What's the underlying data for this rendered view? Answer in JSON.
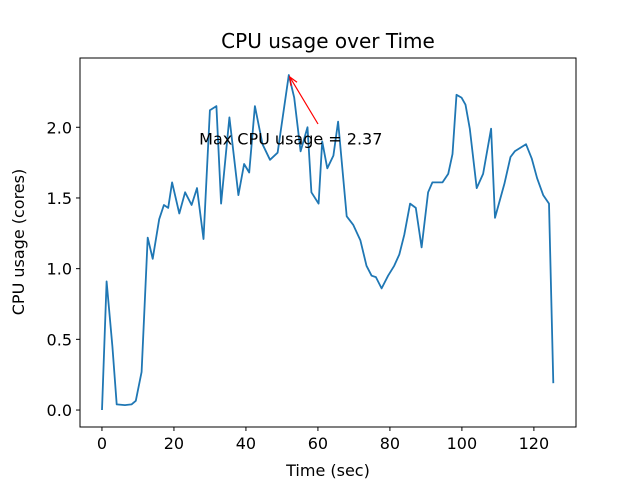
{
  "chart_data": {
    "type": "line",
    "title": "CPU usage over Time",
    "xlabel": "Time (sec)",
    "ylabel": "CPU usage (cores)",
    "xlim": [
      -6.1,
      131.7
    ],
    "ylim": [
      -0.12,
      2.49
    ],
    "xticks": [
      0,
      20,
      40,
      60,
      80,
      100,
      120
    ],
    "xtick_labels": [
      "0",
      "20",
      "40",
      "60",
      "80",
      "100",
      "120"
    ],
    "yticks": [
      0.0,
      0.5,
      1.0,
      1.5,
      2.0
    ],
    "ytick_labels": [
      "0.0",
      "0.5",
      "1.0",
      "1.5",
      "2.0"
    ],
    "grid": false,
    "series": [
      {
        "name": "CPU usage",
        "color": "#1f77b4",
        "x": [
          0,
          1.3,
          2.9,
          4.1,
          6.4,
          8.2,
          9.4,
          11,
          12.7,
          14.1,
          15.9,
          17.2,
          18.4,
          19.5,
          21.5,
          23.1,
          24.9,
          26.4,
          28.2,
          30,
          31.8,
          33.1,
          35.4,
          37.9,
          39.5,
          40.9,
          42.5,
          44.6,
          46.7,
          48.8,
          51.9,
          53.4,
          55.2,
          57.1,
          58.2,
          60.2,
          61.2,
          62.6,
          64.3,
          65.6,
          68,
          69.8,
          71.8,
          73.5,
          74.9,
          76.1,
          77.7,
          79.5,
          81.2,
          82.6,
          84,
          85.6,
          87.2,
          88.8,
          90.6,
          91.8,
          94.6,
          96.2,
          97.4,
          98.5,
          99.9,
          101,
          102.2,
          104.1,
          105.9,
          108.1,
          109.2,
          111.8,
          113.5,
          114.7,
          117.8,
          119.4,
          120.9,
          122.6,
          124.2,
          125.4
        ],
        "y": [
          0.0,
          0.91,
          0.45,
          0.04,
          0.035,
          0.04,
          0.065,
          0.27,
          1.22,
          1.07,
          1.35,
          1.45,
          1.43,
          1.61,
          1.39,
          1.54,
          1.45,
          1.57,
          1.21,
          2.12,
          2.15,
          1.46,
          2.07,
          1.52,
          1.74,
          1.68,
          2.15,
          1.88,
          1.77,
          1.82,
          2.37,
          2.21,
          1.83,
          2.0,
          1.54,
          1.46,
          1.9,
          1.71,
          1.8,
          2.04,
          1.37,
          1.31,
          1.2,
          1.02,
          0.95,
          0.94,
          0.86,
          0.95,
          1.02,
          1.1,
          1.24,
          1.46,
          1.43,
          1.15,
          1.54,
          1.61,
          1.61,
          1.67,
          1.81,
          2.23,
          2.21,
          2.16,
          1.99,
          1.57,
          1.67,
          1.99,
          1.36,
          1.6,
          1.79,
          1.83,
          1.88,
          1.78,
          1.64,
          1.52,
          1.46,
          0.19
        ]
      }
    ],
    "annotation": {
      "text": "Max CPU usage = 2.37",
      "color": "#ff0000",
      "point": [
        51.9,
        2.37
      ],
      "text_pos": [
        27,
        1.92
      ]
    }
  }
}
